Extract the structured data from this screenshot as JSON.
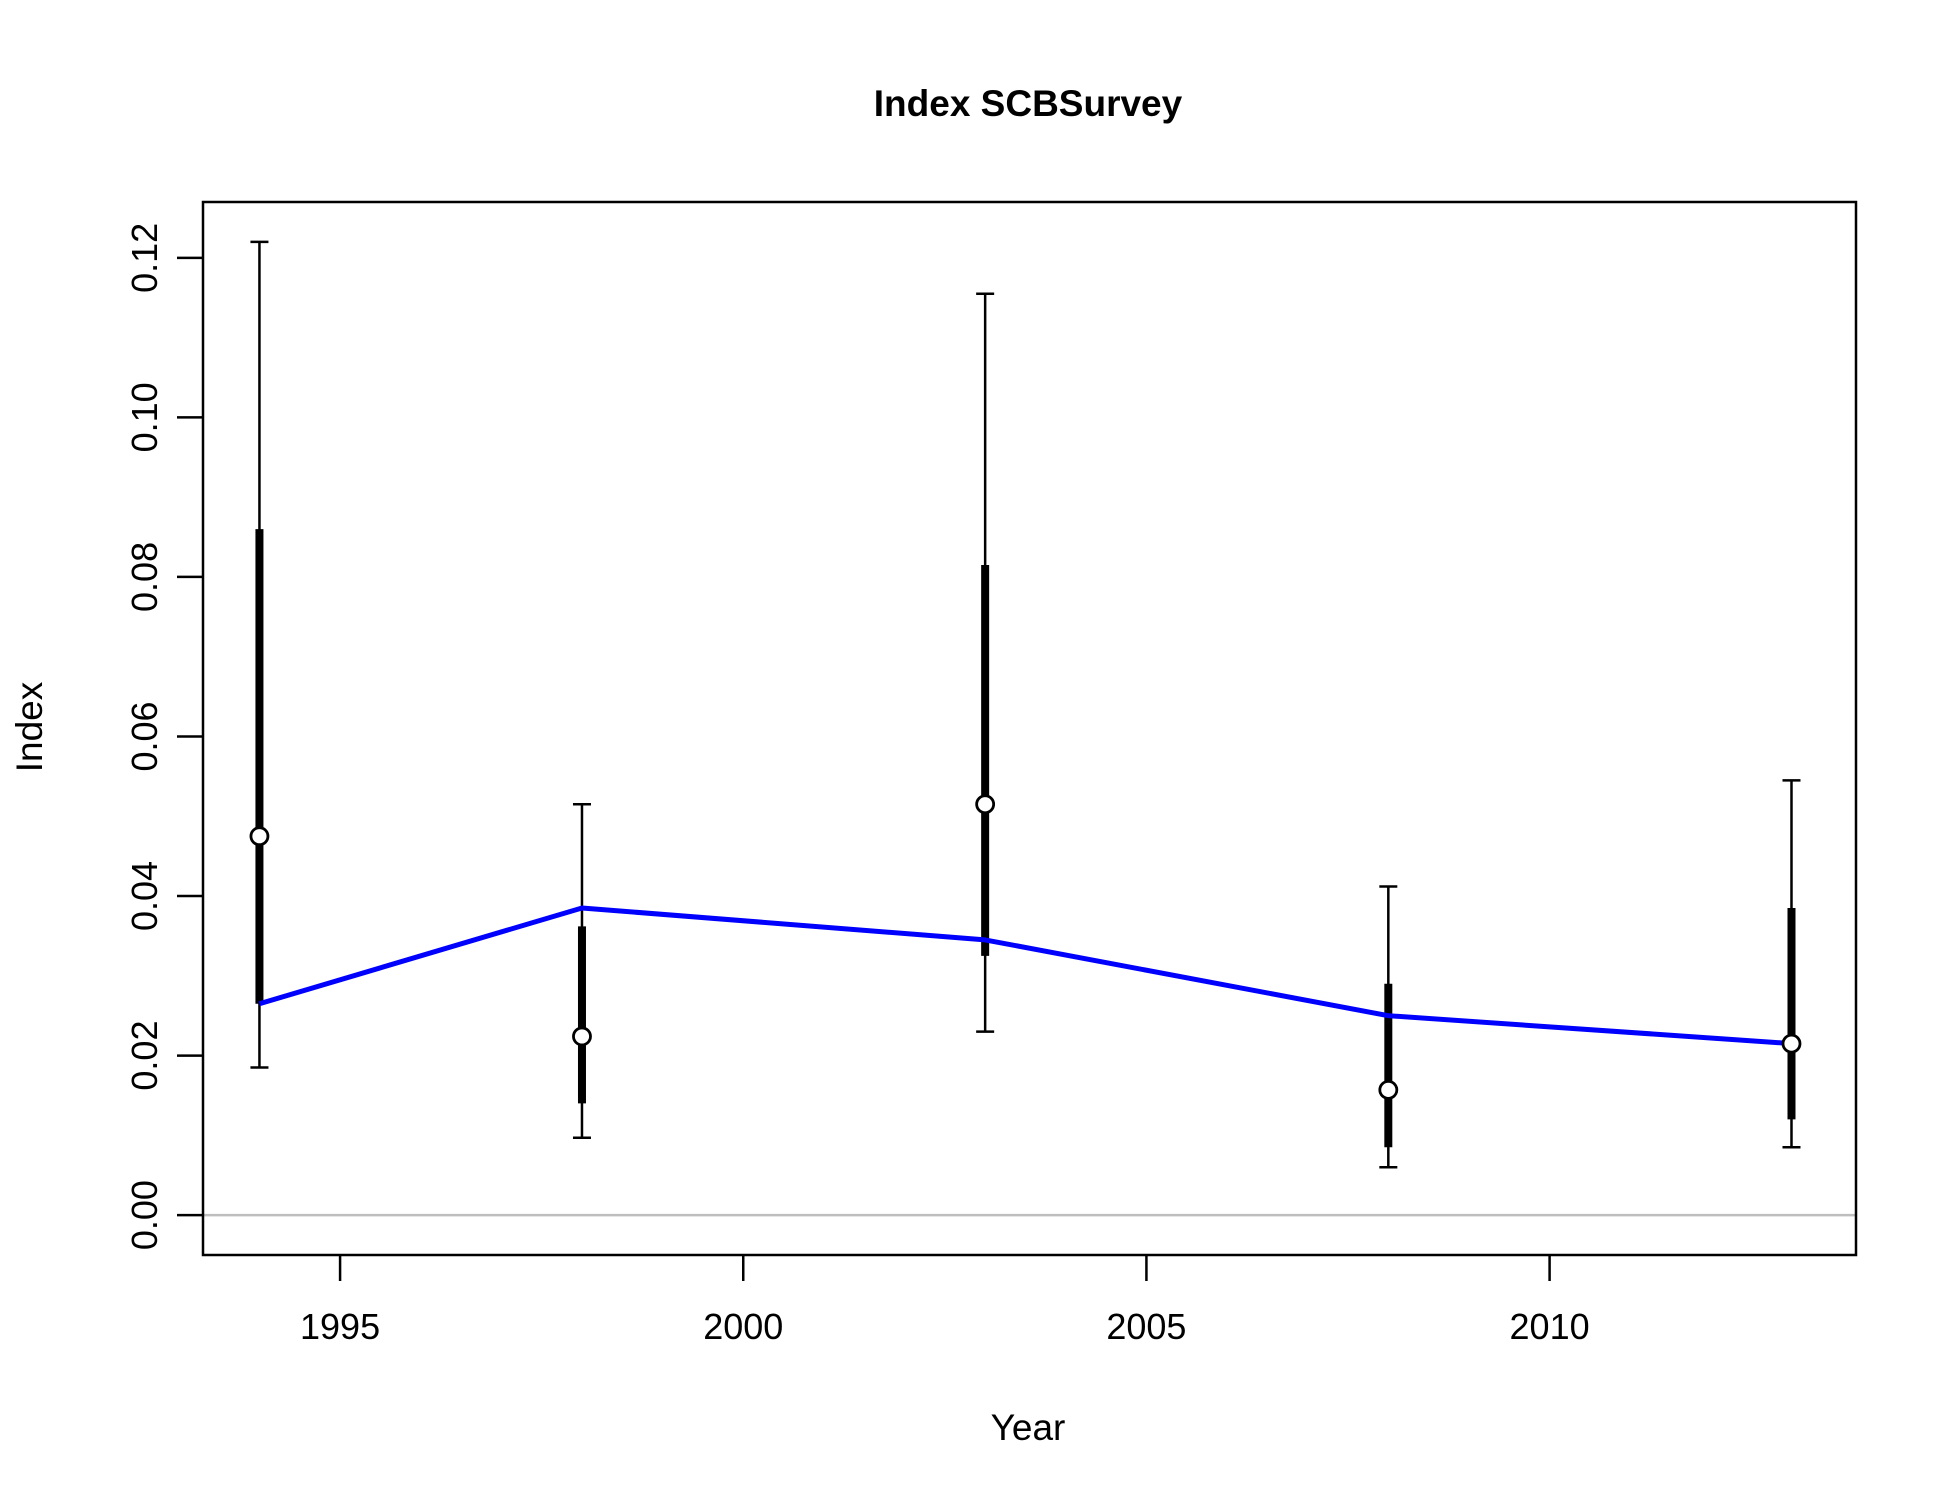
{
  "chart_data": {
    "type": "line",
    "title": "Index SCBSurvey",
    "xlabel": "Year",
    "ylabel": "Index",
    "xlim": [
      1993.3,
      2013.8
    ],
    "ylim": [
      -0.005,
      0.127
    ],
    "x_ticks": [
      1995,
      2000,
      2005,
      2010
    ],
    "x_tick_labels": [
      "1995",
      "2000",
      "2005",
      "2010"
    ],
    "y_ticks": [
      0,
      0.02,
      0.04,
      0.06,
      0.08,
      0.1,
      0.12
    ],
    "y_tick_labels": [
      "0.00",
      "0.02",
      "0.04",
      "0.06",
      "0.08",
      "0.10",
      "0.12"
    ],
    "grid": false,
    "reference_line_y": 0,
    "colors": {
      "expected_line": "#0000ff",
      "observed_points": "#000000",
      "point_fill": "#ffffff",
      "reference_line": "#bebebe",
      "axes": "#000000"
    },
    "observed": {
      "x": [
        1994,
        1998,
        2003,
        2008,
        2013
      ],
      "y": [
        0.0475,
        0.0224,
        0.0515,
        0.0157,
        0.0215
      ],
      "outer_interval_lower": [
        0.0185,
        0.0097,
        0.023,
        0.006,
        0.0085
      ],
      "outer_interval_upper": [
        0.122,
        0.0515,
        0.1155,
        0.0412,
        0.0545
      ],
      "inner_interval_lower": [
        0.0265,
        0.014,
        0.0325,
        0.0085,
        0.012
      ],
      "inner_interval_upper": [
        0.086,
        0.0362,
        0.0815,
        0.029,
        0.0385
      ]
    },
    "expected": {
      "x": [
        1994,
        1998,
        2003,
        2008,
        2013
      ],
      "y": [
        0.0265,
        0.0385,
        0.0345,
        0.025,
        0.0215
      ]
    }
  }
}
